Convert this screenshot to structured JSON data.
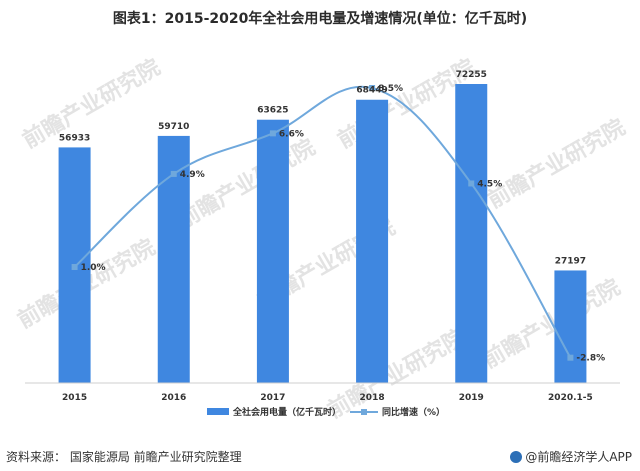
{
  "title": "图表1：2015-2020年全社会用电量及增速情况(单位：亿千瓦时)",
  "chart_data": {
    "type": "bar",
    "categories": [
      "2015",
      "2016",
      "2017",
      "2018",
      "2019",
      "2020.1-5"
    ],
    "series": [
      {
        "name": "全社会用电量（亿千瓦时）",
        "type": "bar",
        "values": [
          56933,
          59710,
          63625,
          68449,
          72255,
          27197
        ],
        "labels": [
          "56933",
          "59710",
          "63625",
          "68449",
          "72255",
          "27197"
        ],
        "color": "#3f87e0"
      },
      {
        "name": "同比增速（%）",
        "type": "line",
        "values": [
          1.0,
          4.9,
          6.6,
          8.5,
          4.5,
          -2.8
        ],
        "labels": [
          "1.0%",
          "4.9%",
          "6.6%",
          "8.5%",
          "4.5%",
          "-2.8%"
        ],
        "color": "#6fa8dc"
      }
    ],
    "ylim_bar": [
      0,
      80000
    ],
    "ylim_line": [
      -4,
      10
    ],
    "legend": "bottom-center",
    "grid": false
  },
  "watermark": "前瞻产业研究院",
  "footer": {
    "source": "资料来源：  国家能源局  前瞻产业研究院整理",
    "brand": "@前瞻经济学人APP"
  }
}
